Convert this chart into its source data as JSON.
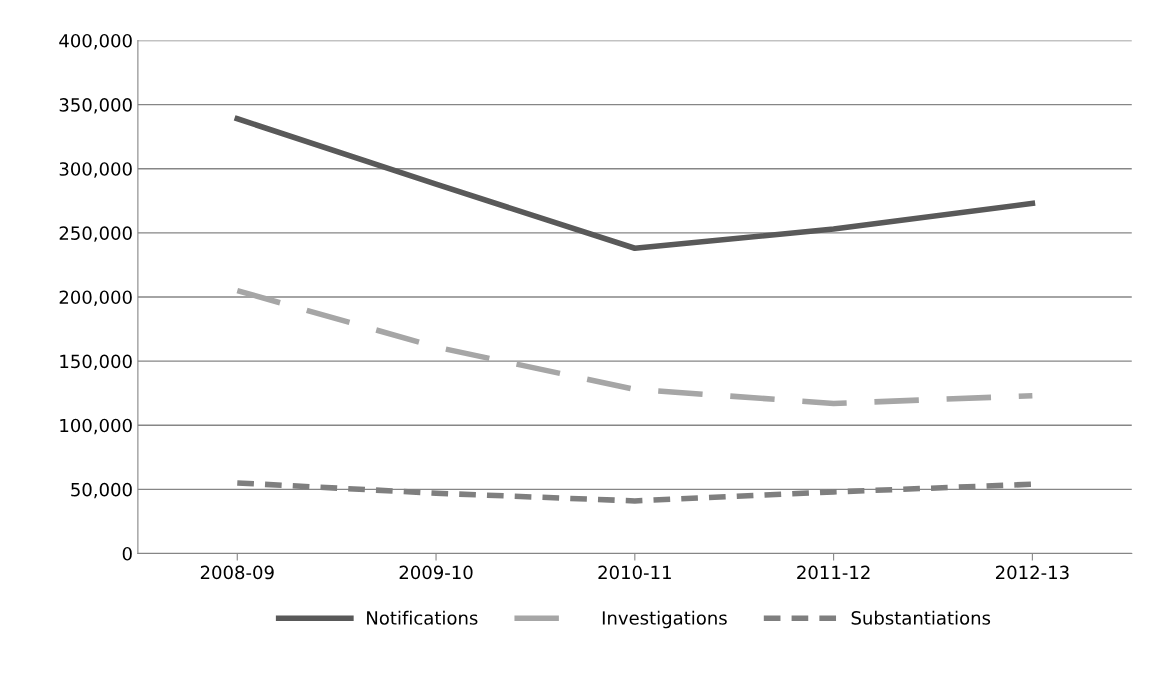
{
  "chart_data": {
    "type": "line",
    "categories": [
      "2008-09",
      "2009-10",
      "2010-11",
      "2011-12",
      "2012-13"
    ],
    "series": [
      {
        "name": "Notifications",
        "color": "#595959",
        "line_style": "solid",
        "values": [
          339000,
          288000,
          238000,
          253000,
          273000
        ]
      },
      {
        "name": "Investigations",
        "color": "#a6a6a6",
        "line_style": "dashed",
        "values": [
          205000,
          161000,
          128000,
          117000,
          123000
        ]
      },
      {
        "name": "Substantiations",
        "color": "#7f7f7f",
        "line_style": "dotted",
        "values": [
          55000,
          47000,
          41000,
          48000,
          54000
        ]
      }
    ],
    "ylim": [
      0,
      400000
    ],
    "yticks": [
      {
        "value": 0,
        "label": "0"
      },
      {
        "value": 50000,
        "label": "50,000"
      },
      {
        "value": 100000,
        "label": "100,000"
      },
      {
        "value": 150000,
        "label": "150,000"
      },
      {
        "value": 200000,
        "label": "200,000"
      },
      {
        "value": 250000,
        "label": "250,000"
      },
      {
        "value": 300000,
        "label": "300,000"
      },
      {
        "value": 350000,
        "label": "350,000"
      },
      {
        "value": 400000,
        "label": "400,000"
      }
    ],
    "grid": "y",
    "legend": "bottom",
    "marker": "none"
  }
}
